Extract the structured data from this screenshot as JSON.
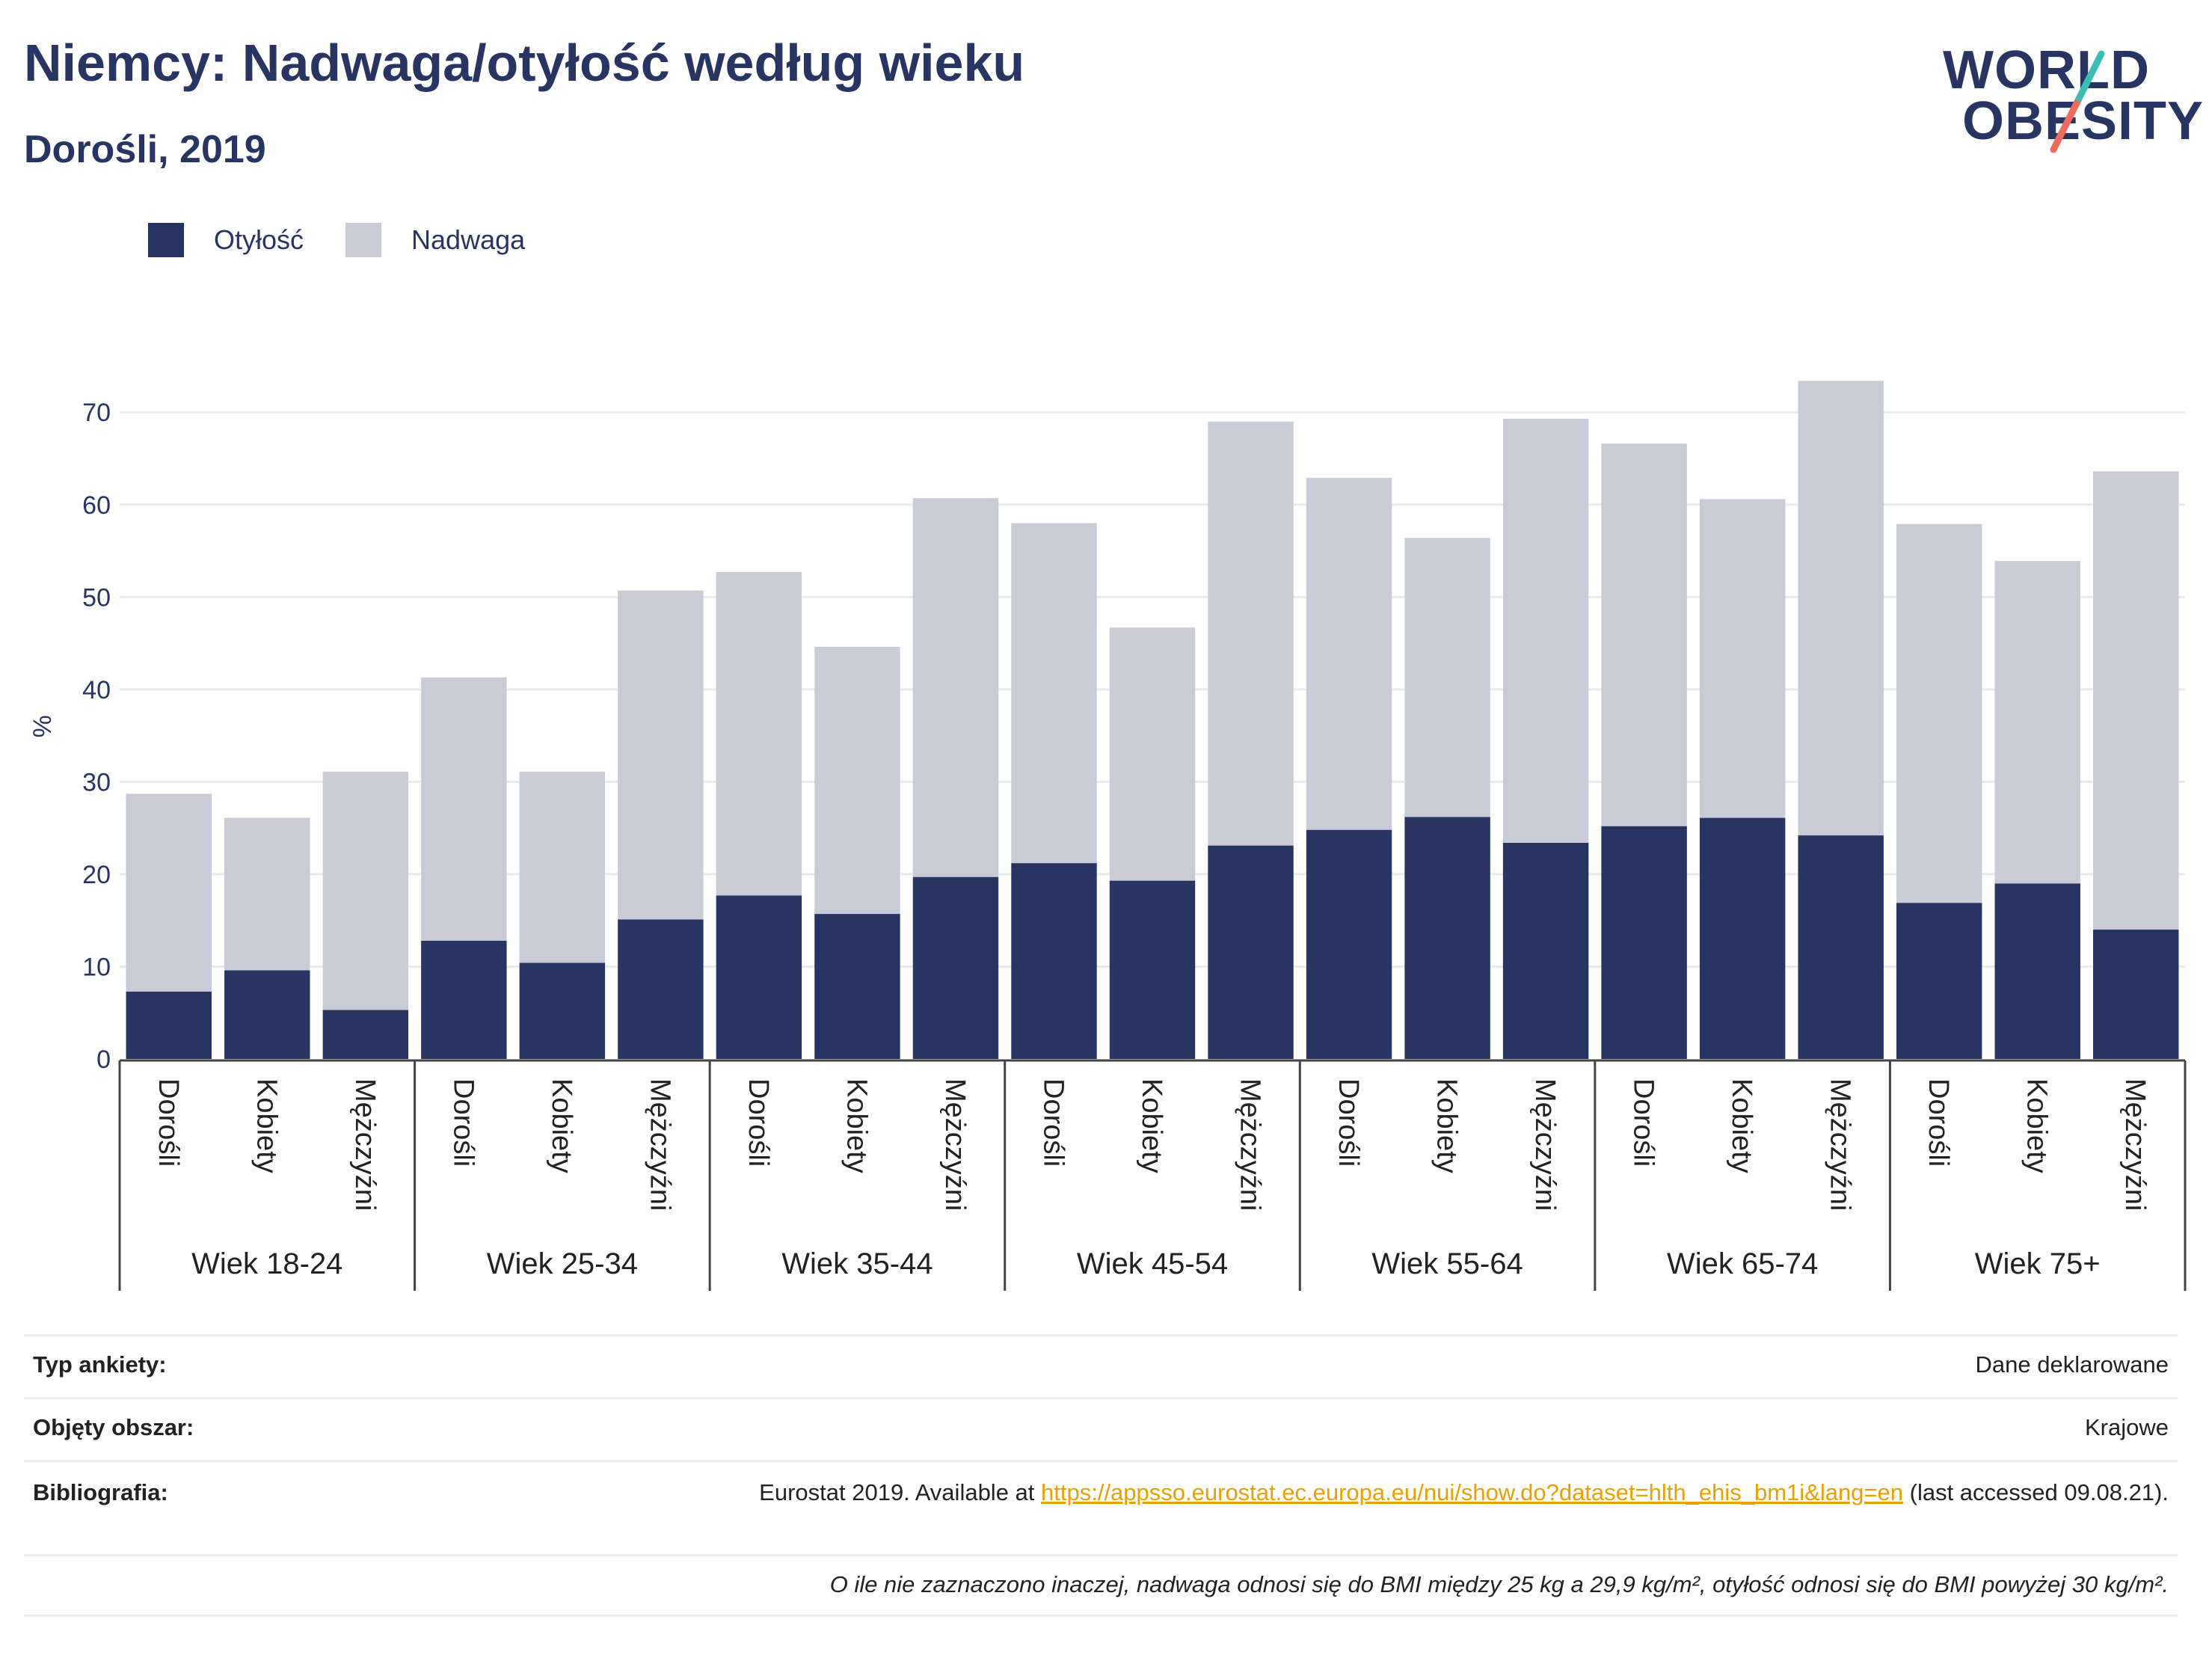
{
  "header": {
    "title": "Niemcy: Nadwaga/otyłość według wieku",
    "subtitle": "Dorośli, 2019"
  },
  "logo": {
    "line1": "WORLD",
    "line2": "OBESITY"
  },
  "legend": {
    "items": [
      {
        "label": "Otyłość",
        "color": "#283562"
      },
      {
        "label": "Nadwaga",
        "color": "#c9cbd7"
      }
    ]
  },
  "chart_data": {
    "type": "bar",
    "stacked": true,
    "ylabel": "%",
    "ylim": [
      0,
      73.5
    ],
    "yticks": [
      0,
      10,
      20,
      30,
      40,
      50,
      60,
      70
    ],
    "groups": [
      {
        "label": "Wiek 18-24",
        "categories": [
          "Dorośli",
          "Kobiety",
          "Mężczyźni"
        ]
      },
      {
        "label": "Wiek 25-34",
        "categories": [
          "Dorośli",
          "Kobiety",
          "Mężczyźni"
        ]
      },
      {
        "label": "Wiek 35-44",
        "categories": [
          "Dorośli",
          "Kobiety",
          "Mężczyźni"
        ]
      },
      {
        "label": "Wiek 45-54",
        "categories": [
          "Dorośli",
          "Kobiety",
          "Mężczyźni"
        ]
      },
      {
        "label": "Wiek 55-64",
        "categories": [
          "Dorośli",
          "Kobiety",
          "Mężczyźni"
        ]
      },
      {
        "label": "Wiek 65-74",
        "categories": [
          "Dorośli",
          "Kobiety",
          "Mężczyźni"
        ]
      },
      {
        "label": "Wiek 75+",
        "categories": [
          "Dorośli",
          "Kobiety",
          "Mężczyźni"
        ]
      }
    ],
    "series": [
      {
        "name": "Otyłość",
        "color": "#283562",
        "values": [
          7.3,
          9.6,
          5.3,
          12.8,
          10.4,
          15.1,
          17.7,
          15.7,
          19.7,
          21.2,
          19.3,
          23.1,
          24.8,
          26.2,
          23.4,
          25.2,
          26.1,
          24.2,
          16.9,
          19.0,
          14.0
        ]
      },
      {
        "name": "Nadwaga",
        "color": "#c9cbd7",
        "values": [
          21.4,
          16.5,
          25.8,
          28.5,
          20.7,
          35.6,
          35.0,
          28.9,
          41.0,
          36.8,
          27.4,
          45.9,
          38.1,
          30.2,
          45.9,
          41.4,
          34.5,
          49.2,
          41.0,
          34.9,
          49.6
        ]
      }
    ],
    "grid": true
  },
  "info": {
    "rows": [
      {
        "key": "Typ ankiety:",
        "value": "Dane deklarowane"
      },
      {
        "key": "Objęty obszar:",
        "value": "Krajowe"
      },
      {
        "key": "Bibliografia:",
        "value_prefix": "Eurostat 2019. Available at ",
        "link": "https://appsso.eurostat.ec.europa.eu/nui/show.do?dataset=hlth_ehis_bm1i&lang=en",
        "value_suffix": " (last accessed 09.08.21)."
      }
    ],
    "note": "O ile nie zaznaczono inaczej, nadwaga odnosi się do BMI między 25 kg a 29,9 kg/m², otyłość odnosi się do BMI powyżej 30 kg/m²."
  }
}
